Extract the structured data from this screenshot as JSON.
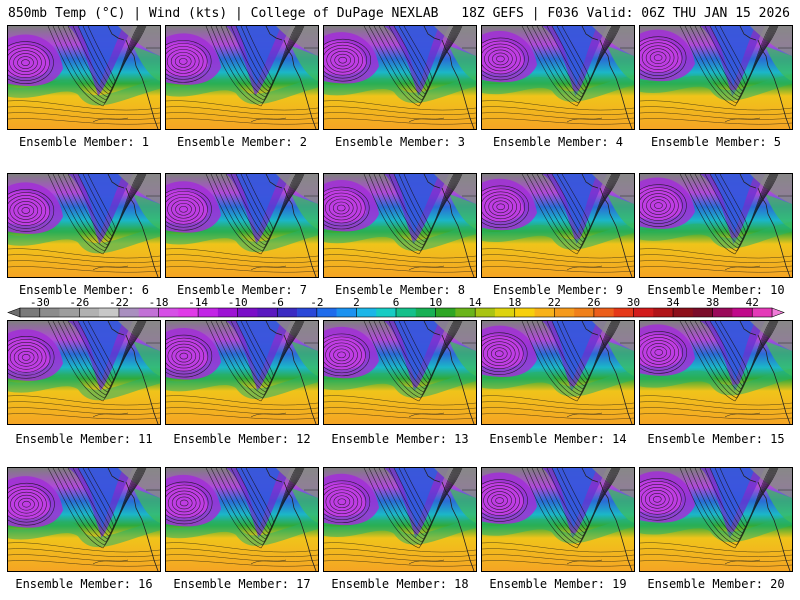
{
  "header": {
    "left": "850mb Temp (°C) | Wind (kts) | College of DuPage NEXLAB",
    "right": "18Z GEFS | F036 Valid: 06Z THU JAN 15 2026"
  },
  "members": [
    "Ensemble Member: 1",
    "Ensemble Member: 2",
    "Ensemble Member: 3",
    "Ensemble Member: 4",
    "Ensemble Member: 5",
    "Ensemble Member: 6",
    "Ensemble Member: 7",
    "Ensemble Member: 8",
    "Ensemble Member: 9",
    "Ensemble Member: 10",
    "Ensemble Member: 11",
    "Ensemble Member: 12",
    "Ensemble Member: 13",
    "Ensemble Member: 14",
    "Ensemble Member: 15",
    "Ensemble Member: 16",
    "Ensemble Member: 17",
    "Ensemble Member: 18",
    "Ensemble Member: 19",
    "Ensemble Member: 20"
  ],
  "colorbar": {
    "labels": [
      "-30",
      "-26",
      "-22",
      "-18",
      "-14",
      "-10",
      "-6",
      "-2",
      "2",
      "6",
      "10",
      "14",
      "18",
      "22",
      "26",
      "30",
      "34",
      "38",
      "42"
    ],
    "min": -32,
    "max": 44,
    "step": 2,
    "colors": [
      "#7a7a7a",
      "#8c8c8c",
      "#9e9e9e",
      "#b1b1b1",
      "#c8c8c8",
      "#a98fbf",
      "#c271d6",
      "#d64fe6",
      "#e03ae8",
      "#c224e6",
      "#9d12d4",
      "#7a0ec8",
      "#5a18c0",
      "#3b2bc2",
      "#2a48d8",
      "#1f6cec",
      "#1b92f0",
      "#1cb6e8",
      "#17ccc4",
      "#14c08a",
      "#18b054",
      "#2ea624",
      "#6ab41a",
      "#a9c412",
      "#ddd30e",
      "#f7d00c",
      "#f8b21a",
      "#f59a1c",
      "#f0801a",
      "#ec5e1a",
      "#e53818",
      "#d21b1b",
      "#b01418",
      "#8c0f1a",
      "#7a0c2a",
      "#9a0a5a",
      "#c00a8a",
      "#e43ab8"
    ]
  }
}
